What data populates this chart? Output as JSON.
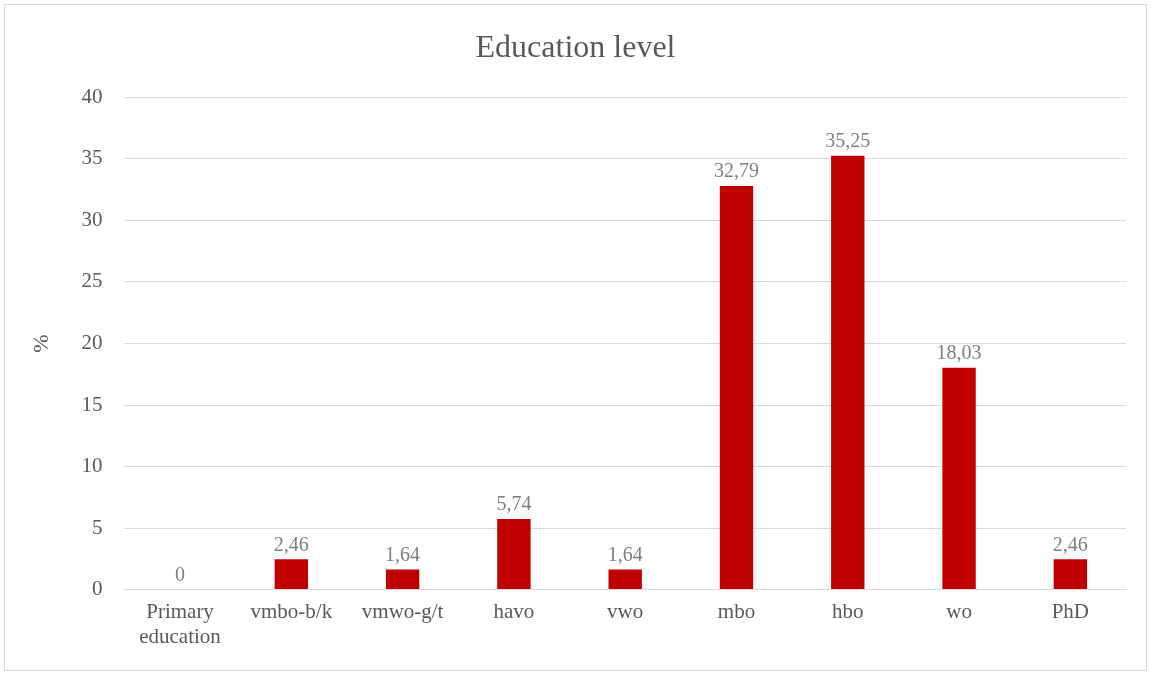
{
  "chart_data": {
    "type": "bar",
    "title": "Education level",
    "ylabel": "%",
    "categories": [
      "Primary education",
      "vmbo-b/k",
      "vmwo-g/t",
      "havo",
      "vwo",
      "mbo",
      "hbo",
      "wo",
      "PhD"
    ],
    "values": [
      0,
      2.46,
      1.64,
      5.74,
      1.64,
      32.79,
      35.25,
      18.03,
      2.46
    ],
    "value_labels": [
      "0",
      "2,46",
      "1,64",
      "5,74",
      "1,64",
      "32,79",
      "35,25",
      "18,03",
      "2,46"
    ],
    "color": "#c00000",
    "ylim": [
      0,
      40
    ],
    "yticks": [
      0,
      5,
      10,
      15,
      20,
      25,
      30,
      35,
      40
    ],
    "grid": "y"
  }
}
